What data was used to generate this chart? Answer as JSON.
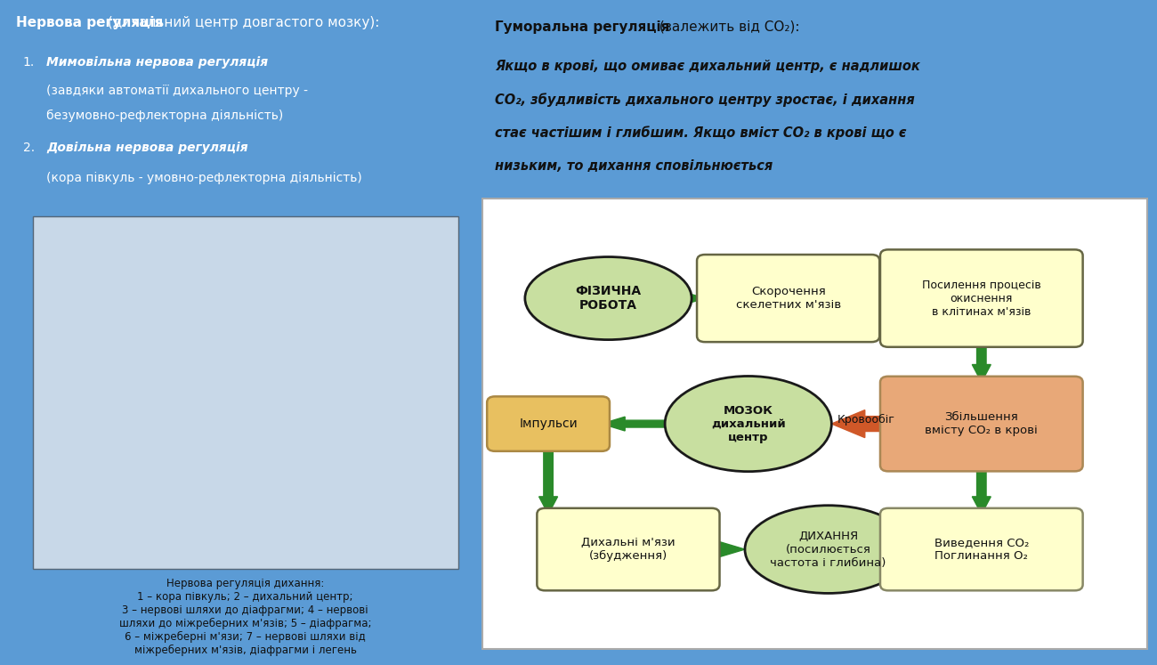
{
  "bg_color": "#5b9bd5",
  "left_panel_bg": "#5b9bd5",
  "right_text_bg": "#7ab4d6",
  "diagram_bg": "#ffffff",
  "title_left_bold": "Нервова регуляція",
  "title_left_rest": " (дихальний центр довгастого мозку):",
  "item1_bold": "Мимовільна нервова регуляція",
  "item1_rest": " (завдяки автоматії дихального центру - безумовно-рефлекторна діяльність)",
  "item2_bold": "Довільна нервова регуляція",
  "item2_rest": " (кора півкуль - умовно-рефлекторна діяльність)",
  "title_right_bold": "Гуморальна регуляція",
  "title_right_rest": " (залежить від CO₂):",
  "right_text_line1": "Якщо в крові, що омиває дихальний центр, є надлишок",
  "right_text_line2": "CO₂, збудливість дихального центру зростає, і дихання",
  "right_text_line3": "стає частішим і глибшим. Якщо вміст CO₂ в крові що є",
  "right_text_line4": "низьким, то дихання сповільнюється",
  "caption_text": "Нервова регуляція дихання:\n1 – кора півкуль; 2 – дихальний центр;\n3 – нервові шляхи до діафрагми; 4 – нервові\nшляхи до міжреберних м'язів; 5 – діафрагма;\n6 – міжреберні м'язи; 7 – нервові шляхи від\nміжреберних м'язів, діафрагми і легень",
  "node_fizychna_text": "ФІЗИЧНА\nРОБОТА",
  "node_mozok_text": "МОЗОК\nдихальний\nцентр",
  "node_impulsy_text": "Імпульси",
  "node_skelet_text": "Скорочення\nскелетних м'язів",
  "node_posylennya_text": "Посилення процесів\nокиснення\nв клітинах м'язів",
  "node_zbilshennya_text": "Збільшення\nвмісту CO₂ в крові",
  "node_krovobig_text": "Кровообіг",
  "node_dyxalni_text": "Дихальні м'язи\n(збудження)",
  "node_dyxannya_text": "ДИХАННЯ\n(посилюється\nчастота і глибина)",
  "node_vyvedennya_text": "Виведення CO₂\nПоглинання O₂",
  "color_green_ellipse": "#c8dfa0",
  "color_yellow_box": "#ffffcc",
  "color_orange_box": "#e8a878",
  "color_orange_impulsy": "#e8c060",
  "color_arrow_green": "#2a8a2a",
  "color_arrow_orange": "#d05828",
  "color_border_ellipse": "#1a1a1a",
  "color_border_box": "#666644"
}
